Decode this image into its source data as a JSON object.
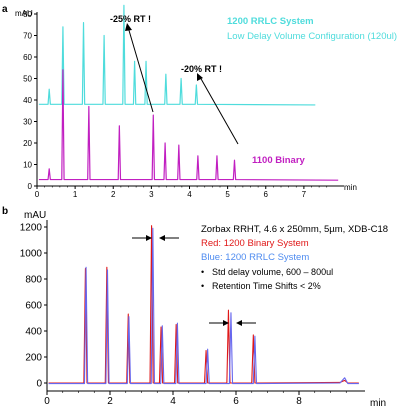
{
  "colors": {
    "cyan": "#4fdcdc",
    "magenta": "#c11fc1",
    "red": "#e01818",
    "blue": "#6666ee",
    "axis": "#000000"
  },
  "chart_data": [
    {
      "id": "a",
      "type": "line",
      "panel_label": "a",
      "ylabel": "mAU",
      "xlabel": "min",
      "x_range": [
        0,
        8
      ],
      "y_range": [
        0,
        80
      ],
      "x_ticks": [
        0,
        1,
        2,
        3,
        4,
        5,
        6,
        7
      ],
      "y_ticks": [
        0,
        10,
        20,
        30,
        40,
        50,
        60,
        70,
        80
      ],
      "series": [
        {
          "name": "1200 RRLC System",
          "subtitle": "Low Delay Volume Configuration (120ul)",
          "color_key": "cyan",
          "baseline": 38,
          "peaks": [
            {
              "x": 0.32,
              "y": 45
            },
            {
              "x": 0.68,
              "y": 74
            },
            {
              "x": 1.22,
              "y": 76
            },
            {
              "x": 1.76,
              "y": 70
            },
            {
              "x": 2.28,
              "y": 84
            },
            {
              "x": 2.56,
              "y": 58
            },
            {
              "x": 2.86,
              "y": 58
            },
            {
              "x": 3.38,
              "y": 52
            },
            {
              "x": 3.78,
              "y": 50
            },
            {
              "x": 4.18,
              "y": 47
            }
          ]
        },
        {
          "name": "1100 Binary",
          "color_key": "magenta",
          "baseline": 3,
          "peaks": [
            {
              "x": 0.32,
              "y": 8
            },
            {
              "x": 0.68,
              "y": 54
            },
            {
              "x": 1.36,
              "y": 37
            },
            {
              "x": 2.16,
              "y": 28
            },
            {
              "x": 3.05,
              "y": 33
            },
            {
              "x": 3.36,
              "y": 20
            },
            {
              "x": 3.72,
              "y": 19
            },
            {
              "x": 4.22,
              "y": 14
            },
            {
              "x": 4.72,
              "y": 14
            },
            {
              "x": 5.18,
              "y": 12
            }
          ]
        }
      ],
      "annotations": [
        {
          "text": "-25% RT !"
        },
        {
          "text": "-20% RT !"
        }
      ]
    },
    {
      "id": "b",
      "type": "line",
      "panel_label": "b",
      "ylabel": "mAU",
      "xlabel": "min",
      "x_range": [
        0,
        10
      ],
      "y_range": [
        -50,
        1250
      ],
      "x_ticks": [
        0,
        2,
        4,
        6,
        8
      ],
      "y_ticks": [
        0,
        200,
        400,
        600,
        800,
        1000,
        1200
      ],
      "legend_title": "Zorbax RRHT, 4.6 x 250mm, 5µm, XDB-C18",
      "legend_red": "Red: 1200 Binary System",
      "legend_blue": "Blue: 1200 RRLC System",
      "bullets": [
        "Std delay volume, 600 – 800ul",
        "Retention Time Shifts < 2%"
      ],
      "series": [
        {
          "name": "Red: 1200 Binary System",
          "color_key": "red",
          "peaks": [
            {
              "x": 1.22,
              "y": 880
            },
            {
              "x": 1.9,
              "y": 890
            },
            {
              "x": 2.58,
              "y": 530
            },
            {
              "x": 3.32,
              "y": 1210
            },
            {
              "x": 3.62,
              "y": 430
            },
            {
              "x": 4.1,
              "y": 450
            },
            {
              "x": 5.05,
              "y": 250
            },
            {
              "x": 5.76,
              "y": 560
            },
            {
              "x": 6.55,
              "y": 370
            }
          ]
        },
        {
          "name": "Blue: 1200 RRLC System",
          "color_key": "blue",
          "peaks": [
            {
              "x": 1.24,
              "y": 890
            },
            {
              "x": 1.92,
              "y": 870
            },
            {
              "x": 2.6,
              "y": 510
            },
            {
              "x": 3.36,
              "y": 1190
            },
            {
              "x": 3.66,
              "y": 440
            },
            {
              "x": 4.14,
              "y": 460
            },
            {
              "x": 5.1,
              "y": 260
            },
            {
              "x": 5.84,
              "y": 540
            },
            {
              "x": 6.6,
              "y": 360
            }
          ]
        }
      ]
    }
  ]
}
